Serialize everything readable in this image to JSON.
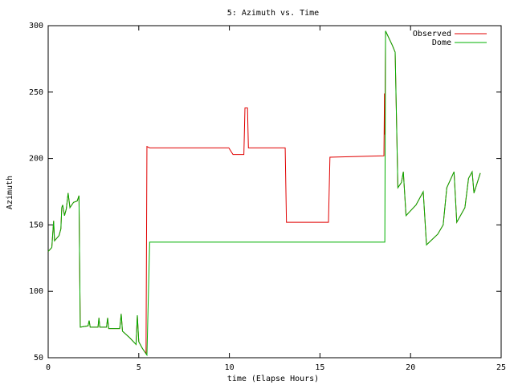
{
  "chart_data": {
    "type": "line",
    "title": "5: Azimuth vs. Time",
    "xlabel": "time (Elapse Hours)",
    "ylabel": "Azimuth",
    "x": [
      0,
      0.2,
      0.3,
      0.35,
      0.6,
      0.7,
      0.75,
      0.8,
      0.9,
      1.0,
      1.1,
      1.2,
      1.4,
      1.6,
      1.7,
      1.77,
      2.2,
      2.26,
      2.32,
      2.75,
      2.8,
      2.85,
      3.22,
      3.28,
      3.34,
      3.95,
      4.03,
      4.1,
      4.5,
      4.85,
      4.92,
      5.0,
      5.2,
      5.4,
      5.45,
      5.6,
      9.97,
      10.2,
      10.8,
      10.86,
      11.0,
      11.05,
      13.08,
      13.15,
      15.47,
      15.55,
      18.53,
      18.56,
      18.58,
      18.62,
      19.0,
      19.15,
      19.3,
      19.5,
      19.6,
      19.75,
      20.3,
      20.7,
      20.88,
      21.5,
      21.8,
      22.0,
      22.4,
      22.55,
      23.0,
      23.2,
      23.4,
      23.5,
      23.85
    ],
    "series": [
      {
        "name": "Observed",
        "color": "#e00000",
        "values": [
          130,
          133,
          153,
          138,
          142,
          147,
          163,
          165,
          157,
          162,
          174,
          163,
          167,
          168,
          172,
          73,
          74,
          78,
          73,
          73,
          80,
          73,
          73,
          80,
          72,
          72,
          83,
          70,
          65,
          60,
          82,
          62,
          57,
          53,
          209,
          208,
          208,
          203,
          203,
          238,
          238,
          208,
          208,
          152,
          152,
          201,
          202,
          249,
          218,
          296,
          285,
          280,
          178,
          182,
          190,
          157,
          165,
          175,
          135,
          143,
          150,
          178,
          190,
          152,
          163,
          185,
          190,
          174,
          189
        ]
      },
      {
        "name": "Dome",
        "color": "#00b000",
        "values": [
          130,
          133,
          153,
          138,
          142,
          147,
          163,
          165,
          157,
          162,
          174,
          163,
          167,
          168,
          172,
          73,
          74,
          78,
          73,
          73,
          80,
          73,
          73,
          80,
          72,
          72,
          83,
          70,
          65,
          60,
          82,
          62,
          57,
          53,
          52,
          137,
          137,
          137,
          137,
          137,
          137,
          137,
          137,
          137,
          137,
          137,
          137,
          137,
          137,
          296,
          285,
          280,
          178,
          182,
          190,
          157,
          165,
          175,
          135,
          143,
          150,
          178,
          190,
          152,
          163,
          185,
          190,
          174,
          189
        ]
      }
    ],
    "xlim": [
      0,
      25
    ],
    "ylim": [
      50,
      300
    ],
    "xticks": [
      0,
      5,
      10,
      15,
      20,
      25
    ],
    "yticks": [
      50,
      100,
      150,
      200,
      250,
      300
    ],
    "grid": false,
    "legend": "top-right"
  }
}
